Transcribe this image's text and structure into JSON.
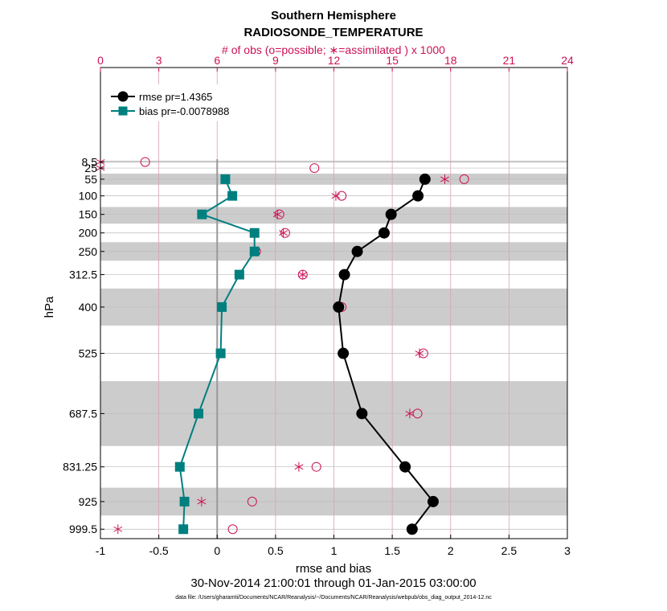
{
  "chart_data": {
    "type": "line",
    "title": "Southern Hemisphere",
    "subtitle": "RADIOSONDE_TEMPERATURE",
    "top_axis_label": "# of obs (o=possible; ∗=assimilated ) x 1000",
    "xlabel": "rmse and bias",
    "ylabel": "hPa",
    "date_range": "30-Nov-2014 21:00:01 through 01-Jan-2015 03:00:00",
    "data_file": "data file: /Users/gharamti/Documents/NCAR/Reanalysis/~/Documents/NCAR/Reanalysis/webpub/obs_diag_output_2014-12.nc",
    "xlim": [
      -1,
      3
    ],
    "x_ticks": [
      "-1",
      "-0.5",
      "0",
      "0.5",
      "1",
      "1.5",
      "2",
      "2.5",
      "3"
    ],
    "x_tick_values": [
      -1,
      -0.5,
      0,
      0.5,
      1,
      1.5,
      2,
      2.5,
      3
    ],
    "top_xlim": [
      0,
      24
    ],
    "top_ticks": [
      "0",
      "3",
      "6",
      "9",
      "12",
      "15",
      "18",
      "21",
      "24"
    ],
    "top_tick_values": [
      0,
      3,
      6,
      9,
      12,
      15,
      18,
      21,
      24
    ],
    "pressure_levels": [
      8.5,
      25,
      55,
      100,
      150,
      200,
      250,
      312.5,
      400,
      525,
      687.5,
      831.25,
      925,
      999.5
    ],
    "y_tick_labels": [
      "8.5",
      "25",
      "55",
      "100",
      "150",
      "200",
      "250",
      "312.5",
      "400",
      "525",
      "687.5",
      "831.25",
      "925",
      "999.5"
    ],
    "shaded_bands": [
      {
        "top": 5,
        "bottom": 10
      },
      {
        "top": 40,
        "bottom": 70
      },
      {
        "top": 130,
        "bottom": 175
      },
      {
        "top": 225,
        "bottom": 275
      },
      {
        "top": 350,
        "bottom": 450
      },
      {
        "top": 600,
        "bottom": 775
      },
      {
        "top": 887.5,
        "bottom": 962.5
      }
    ],
    "series": [
      {
        "name": "rmse",
        "legend": "rmse pr=1.4365",
        "color": "#000000",
        "marker": "circle",
        "levels": [
          55,
          100,
          150,
          200,
          250,
          312.5,
          400,
          525,
          687.5,
          831.25,
          925,
          999.5
        ],
        "values": [
          1.78,
          1.72,
          1.49,
          1.43,
          1.2,
          1.09,
          1.04,
          1.08,
          1.24,
          1.61,
          1.85,
          1.67
        ]
      },
      {
        "name": "bias",
        "legend": "bias pr=-0.0078988",
        "color": "#007f7f",
        "marker": "square",
        "levels": [
          55,
          100,
          150,
          200,
          250,
          312.5,
          400,
          525,
          687.5,
          831.25,
          925,
          999.5
        ],
        "values": [
          0.07,
          0.13,
          -0.13,
          0.32,
          0.32,
          0.19,
          0.04,
          0.03,
          -0.16,
          -0.32,
          -0.28,
          -0.29
        ]
      }
    ],
    "obs_possible": {
      "levels": [
        8.5,
        25,
        55,
        100,
        150,
        200,
        250,
        312.5,
        400,
        525,
        687.5,
        831.25,
        925,
        999.5
      ],
      "values": [
        2.3,
        11.0,
        18.7,
        12.4,
        9.2,
        9.5,
        8.0,
        10.4,
        12.4,
        16.6,
        16.3,
        11.1,
        7.8,
        6.8
      ]
    },
    "obs_assimilated": {
      "levels": [
        8.5,
        25,
        55,
        100,
        150,
        200,
        250,
        312.5,
        400,
        525,
        687.5,
        831.25,
        925,
        999.5
      ],
      "values": [
        0.0,
        0.0,
        17.7,
        12.1,
        9.1,
        9.4,
        8.0,
        10.4,
        12.3,
        16.4,
        15.9,
        10.2,
        5.2,
        0.9
      ]
    }
  },
  "colors": {
    "accent": "#cc1155",
    "bias": "#007f7f",
    "rmse": "#000000",
    "band": "#cccccc"
  }
}
